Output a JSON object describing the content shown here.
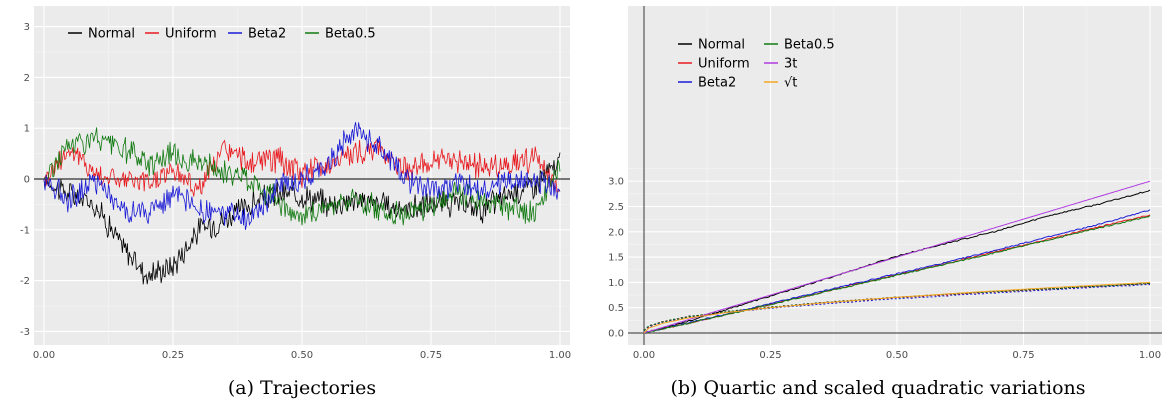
{
  "chart_data": [
    {
      "type": "line",
      "caption": "(a) Trajectories",
      "xlim": [
        0,
        1
      ],
      "ylim": [
        -3.3,
        3.3
      ],
      "x_ticks": [
        "0.00",
        "0.25",
        "0.50",
        "0.75",
        "1.00"
      ],
      "y_ticks": [
        "-3",
        "-2",
        "-1",
        "0",
        "1",
        "2",
        "3"
      ],
      "legend_position": "top-left",
      "grid": true,
      "series": [
        {
          "name": "Normal",
          "color": "#000000",
          "x": [
            0,
            0.05,
            0.1,
            0.15,
            0.2,
            0.25,
            0.3,
            0.35,
            0.4,
            0.45,
            0.5,
            0.55,
            0.6,
            0.65,
            0.7,
            0.75,
            0.8,
            0.85,
            0.9,
            0.95,
            1.0
          ],
          "y": [
            0,
            -0.3,
            -0.5,
            -1.3,
            -1.9,
            -1.7,
            -1.0,
            -0.8,
            -0.5,
            -0.3,
            -0.3,
            -0.5,
            -0.4,
            -0.5,
            -0.6,
            -0.5,
            -0.5,
            -0.6,
            -0.3,
            -0.1,
            0.3
          ]
        },
        {
          "name": "Uniform",
          "color": "#e8191e",
          "x": [
            0,
            0.05,
            0.1,
            0.15,
            0.2,
            0.25,
            0.3,
            0.35,
            0.4,
            0.45,
            0.5,
            0.55,
            0.6,
            0.65,
            0.7,
            0.75,
            0.8,
            0.85,
            0.9,
            0.95,
            1.0
          ],
          "y": [
            0,
            0.6,
            0.1,
            0.0,
            -0.1,
            0.2,
            -0.2,
            0.6,
            0.3,
            0.4,
            0.1,
            0.3,
            0.5,
            0.6,
            0.2,
            0.3,
            0.4,
            0.2,
            0.3,
            0.4,
            -0.3
          ]
        },
        {
          "name": "Beta2",
          "color": "#1a1ad6",
          "x": [
            0,
            0.05,
            0.1,
            0.15,
            0.2,
            0.25,
            0.3,
            0.35,
            0.4,
            0.45,
            0.5,
            0.55,
            0.6,
            0.65,
            0.7,
            0.75,
            0.8,
            0.85,
            0.9,
            0.95,
            1.0
          ],
          "y": [
            0,
            -0.4,
            0.0,
            -0.6,
            -0.7,
            -0.3,
            -0.6,
            -0.7,
            -0.8,
            -0.2,
            0.0,
            0.3,
            1.0,
            0.6,
            0.0,
            -0.2,
            -0.1,
            -0.3,
            0.0,
            0.0,
            -0.3
          ]
        },
        {
          "name": "Beta0.5",
          "color": "#127a12",
          "x": [
            0,
            0.05,
            0.1,
            0.15,
            0.2,
            0.25,
            0.3,
            0.35,
            0.4,
            0.45,
            0.5,
            0.55,
            0.6,
            0.65,
            0.7,
            0.75,
            0.8,
            0.85,
            0.9,
            0.95,
            1.0
          ],
          "y": [
            0,
            0.7,
            0.8,
            0.6,
            0.3,
            0.5,
            0.3,
            0.1,
            0.0,
            -0.4,
            -0.8,
            -0.5,
            -0.4,
            -0.6,
            -0.7,
            -0.5,
            -0.3,
            -0.4,
            -0.6,
            -0.7,
            0.2
          ]
        }
      ]
    },
    {
      "type": "line",
      "caption": "(b) Quartic and scaled quadratic variations",
      "xlim": [
        0,
        1
      ],
      "ylim": [
        0,
        3.1
      ],
      "x_ticks": [
        "0.00",
        "0.25",
        "0.50",
        "0.75",
        "1.00"
      ],
      "y_ticks": [
        "0.0",
        "0.5",
        "1.0",
        "1.5",
        "2.0",
        "2.5",
        "3.0"
      ],
      "legend_position": "top-left",
      "grid": true,
      "legend_order": [
        "Normal",
        "Beta0.5",
        "Uniform",
        "3t",
        "Beta2",
        "√t"
      ],
      "series": [
        {
          "name": "Normal",
          "color": "#000000",
          "x": [
            0,
            0.1,
            0.2,
            0.3,
            0.4,
            0.5,
            0.6,
            0.7,
            0.8,
            0.9,
            1.0
          ],
          "y": [
            0,
            0.27,
            0.58,
            0.88,
            1.2,
            1.52,
            1.78,
            2.02,
            2.32,
            2.55,
            2.82
          ]
        },
        {
          "name": "Uniform",
          "color": "#e8191e",
          "x": [
            0,
            0.1,
            0.2,
            0.3,
            0.4,
            0.5,
            0.6,
            0.7,
            0.8,
            0.9,
            1.0
          ],
          "y": [
            0,
            0.22,
            0.45,
            0.68,
            0.92,
            1.15,
            1.38,
            1.62,
            1.86,
            2.1,
            2.33
          ]
        },
        {
          "name": "Beta2",
          "color": "#1a1ad6",
          "x": [
            0,
            0.1,
            0.2,
            0.3,
            0.4,
            0.5,
            0.6,
            0.7,
            0.8,
            0.9,
            1.0
          ],
          "y": [
            0,
            0.23,
            0.46,
            0.7,
            0.94,
            1.17,
            1.4,
            1.65,
            1.9,
            2.15,
            2.43
          ]
        },
        {
          "name": "Beta0.5",
          "color": "#127a12",
          "x": [
            0,
            0.1,
            0.2,
            0.3,
            0.4,
            0.5,
            0.6,
            0.7,
            0.8,
            0.9,
            1.0
          ],
          "y": [
            0,
            0.22,
            0.45,
            0.68,
            0.91,
            1.14,
            1.37,
            1.6,
            1.84,
            2.08,
            2.31
          ]
        },
        {
          "name": "3t",
          "color": "#b03ae0",
          "x": [
            0,
            1
          ],
          "y": [
            0,
            3
          ]
        },
        {
          "name": "√t",
          "color": "#f5a623",
          "x": [
            0,
            0.01,
            0.04,
            0.09,
            0.16,
            0.25,
            0.36,
            0.49,
            0.64,
            0.81,
            1.0
          ],
          "y": [
            0,
            0.1,
            0.2,
            0.3,
            0.4,
            0.5,
            0.6,
            0.7,
            0.8,
            0.9,
            1.0
          ]
        }
      ],
      "dotted_series": [
        {
          "name": "Normal",
          "color": "#000000",
          "x": [
            0,
            0.01,
            0.04,
            0.09,
            0.16,
            0.25,
            0.36,
            0.49,
            0.64,
            0.81,
            1.0
          ],
          "y": [
            0.05,
            0.14,
            0.23,
            0.33,
            0.42,
            0.51,
            0.61,
            0.7,
            0.79,
            0.88,
            0.98
          ]
        },
        {
          "name": "Uniform",
          "color": "#e8191e",
          "x": [
            0,
            0.01,
            0.04,
            0.09,
            0.16,
            0.25,
            0.36,
            0.49,
            0.64,
            0.81,
            1.0
          ],
          "y": [
            0.05,
            0.13,
            0.23,
            0.32,
            0.41,
            0.5,
            0.6,
            0.69,
            0.78,
            0.87,
            0.97
          ]
        },
        {
          "name": "Beta2",
          "color": "#1a1ad6",
          "x": [
            0,
            0.01,
            0.04,
            0.09,
            0.16,
            0.25,
            0.36,
            0.49,
            0.64,
            0.81,
            1.0
          ],
          "y": [
            0.05,
            0.13,
            0.22,
            0.31,
            0.4,
            0.49,
            0.58,
            0.67,
            0.76,
            0.86,
            0.96
          ]
        },
        {
          "name": "Beta0.5",
          "color": "#127a12",
          "x": [
            0,
            0.01,
            0.04,
            0.09,
            0.16,
            0.25,
            0.36,
            0.49,
            0.64,
            0.81,
            1.0
          ],
          "y": [
            0.05,
            0.14,
            0.23,
            0.32,
            0.42,
            0.51,
            0.6,
            0.7,
            0.79,
            0.88,
            0.98
          ]
        }
      ]
    }
  ]
}
